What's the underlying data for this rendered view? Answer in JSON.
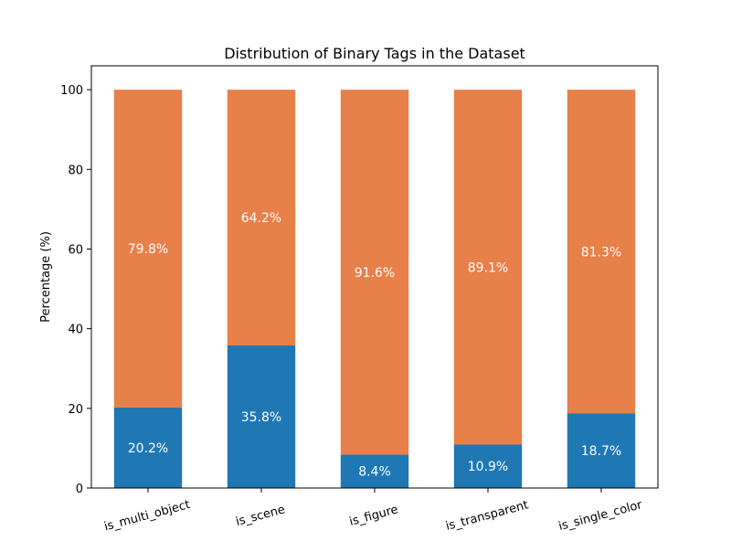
{
  "chart_data": {
    "type": "bar",
    "stacked": true,
    "title": "Distribution of Binary Tags in the Dataset",
    "xlabel": "",
    "ylabel": "Percentage (%)",
    "ylim": [
      0,
      106
    ],
    "yticks": [
      0,
      20,
      40,
      60,
      80,
      100
    ],
    "grid": false,
    "legend": "none",
    "categories": [
      "is_multi_object",
      "is_scene",
      "is_figure",
      "is_transparent",
      "is_single_color"
    ],
    "series": [
      {
        "color": "#1f77b4",
        "values": [
          20.2,
          35.8,
          8.4,
          10.9,
          18.7
        ],
        "labels": [
          "20.2%",
          "35.8%",
          "8.4%",
          "10.9%",
          "18.7%"
        ]
      },
      {
        "color": "#e8804a",
        "values": [
          79.8,
          64.2,
          91.6,
          89.1,
          81.3
        ],
        "labels": [
          "79.8%",
          "64.2%",
          "91.6%",
          "89.1%",
          "81.3%"
        ]
      }
    ]
  }
}
